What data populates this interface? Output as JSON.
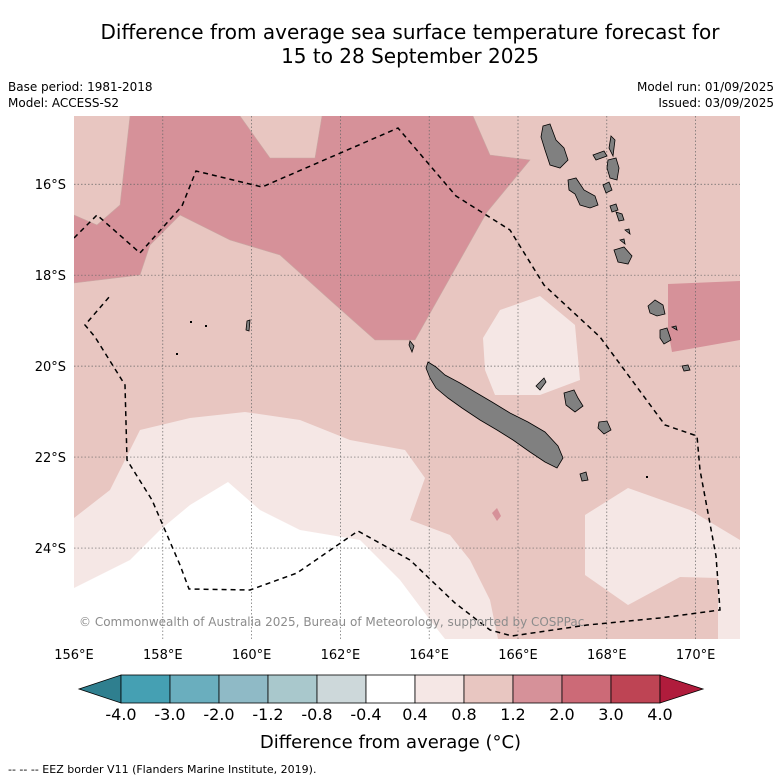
{
  "title": {
    "line1": "Difference from average sea surface temperature forecast for",
    "line2": "15 to 28 September 2025"
  },
  "meta": {
    "base_period": "Base period: 1981-2018",
    "model": "Model: ACCESS-S2",
    "model_run": "Model run: 01/09/2025",
    "issued": "Issued: 03/09/2025"
  },
  "copyright": "© Commonwealth of Australia 2025, Bureau of Meteorology, supported by COSPPac",
  "axes": {
    "x_ticks": [
      {
        "label": "156°E",
        "lon": 156
      },
      {
        "label": "158°E",
        "lon": 158
      },
      {
        "label": "160°E",
        "lon": 160
      },
      {
        "label": "162°E",
        "lon": 162
      },
      {
        "label": "164°E",
        "lon": 164
      },
      {
        "label": "166°E",
        "lon": 166
      },
      {
        "label": "168°E",
        "lon": 168
      },
      {
        "label": "170°E",
        "lon": 170
      }
    ],
    "y_ticks": [
      {
        "label": "16°S",
        "lat": -16
      },
      {
        "label": "18°S",
        "lat": -18
      },
      {
        "label": "20°S",
        "lat": -20
      },
      {
        "label": "22°S",
        "lat": -22
      },
      {
        "label": "24°S",
        "lat": -24
      }
    ],
    "lon_range": [
      156.0,
      171.0
    ],
    "lat_range": [
      -26.0,
      -14.5
    ]
  },
  "colorbar": {
    "title": "Difference from average (°C)",
    "tick_labels": [
      "-4.0",
      "-3.0",
      "-2.0",
      "-1.2",
      "-0.8",
      "-0.4",
      "0.4",
      "0.8",
      "1.2",
      "2.0",
      "3.0",
      "4.0"
    ],
    "under_color": "#2f7f8f",
    "over_color": "#b01c3c",
    "colors": [
      "#45a0b3",
      "#6aaebe",
      "#8fbac6",
      "#a9c8cc",
      "#cdd8da",
      "#ffffff",
      "#f5e7e5",
      "#e8c6c1",
      "#d69199",
      "#cc6a77",
      "#be4454"
    ]
  },
  "field": {
    "colors": {
      "0.4-0.8": "#f5e7e5",
      "0.8-1.2": "#e8c6c1",
      "1.2-2.0": "#d69199"
    },
    "land_color": "#808080"
  },
  "footer": "--  --  -- EEZ border V11 (Flanders Marine Institute, 2019)."
}
